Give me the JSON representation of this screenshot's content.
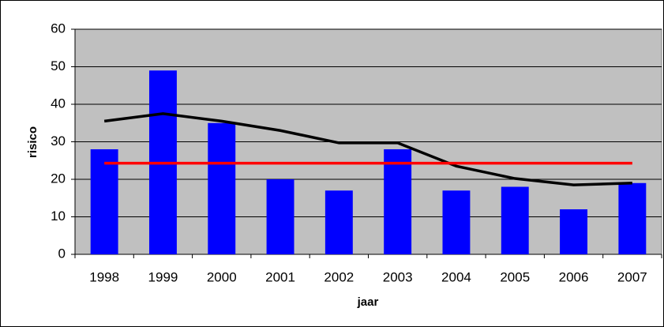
{
  "chart_data": {
    "type": "bar",
    "x_label": "jaar",
    "y_label": "risico",
    "categories": [
      "1998",
      "1999",
      "2000",
      "2001",
      "2002",
      "2003",
      "2004",
      "2005",
      "2006",
      "2007"
    ],
    "series": [
      {
        "type": "bar",
        "color": "#0000ff",
        "values": [
          28,
          49,
          35,
          20,
          17,
          28,
          17,
          18,
          12,
          19
        ]
      },
      {
        "type": "line",
        "color": "#000000",
        "values": [
          35.5,
          37.5,
          35.5,
          33,
          29.7,
          29.7,
          23.5,
          20.2,
          18.5,
          19
        ]
      },
      {
        "type": "line",
        "color": "#ff0000",
        "values": [
          24.3,
          24.3,
          24.3,
          24.3,
          24.3,
          24.3,
          24.3,
          24.3,
          24.3,
          24.3
        ]
      }
    ],
    "ylim": [
      0,
      60
    ],
    "yticks": [
      0,
      10,
      20,
      30,
      40,
      50,
      60
    ],
    "grid": true,
    "plot_background": "#c0c0c0"
  }
}
